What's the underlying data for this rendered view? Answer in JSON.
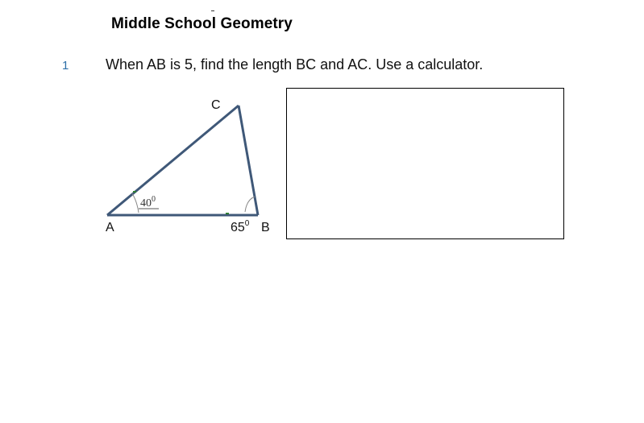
{
  "worksheet": {
    "title": "Middle School Geometry"
  },
  "question": {
    "number": "1",
    "text": "When AB is 5, find the length BC and AC. Use a calculator."
  },
  "figure": {
    "vertices": {
      "a": "A",
      "b": "B",
      "c": "C"
    },
    "angle_a": {
      "value": "40",
      "unit_sup": "0"
    },
    "angle_b": {
      "value": "65",
      "unit_sup": "0"
    },
    "colors": {
      "triangle_stroke": "#3f5878",
      "marker": "#2e7d32"
    }
  },
  "answer_area": {}
}
